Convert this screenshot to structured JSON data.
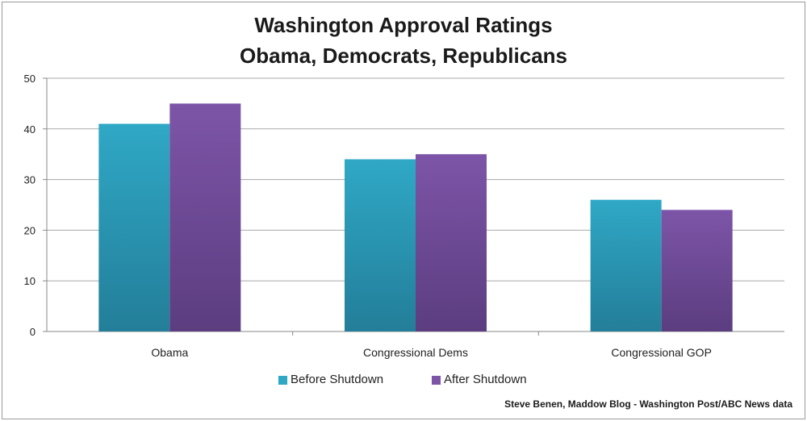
{
  "chart_data": {
    "type": "bar",
    "title": "Washington Approval Ratings",
    "subtitle": "Obama, Democrats, Republicans",
    "categories": [
      "Obama",
      "Congressional Dems",
      "Congressional GOP"
    ],
    "series": [
      {
        "name": "Before Shutdown",
        "values": [
          41,
          34,
          26
        ],
        "color": "#2fa8c6"
      },
      {
        "name": "After Shutdown",
        "values": [
          45,
          35,
          24
        ],
        "color": "#7d55a8"
      }
    ],
    "ylim": [
      0,
      50
    ],
    "yticks": [
      0,
      10,
      20,
      30,
      40,
      50
    ],
    "grid": true,
    "legend": "bottom",
    "credit": "Steve Benen, Maddow Blog - Washington Post/ABC News data"
  }
}
